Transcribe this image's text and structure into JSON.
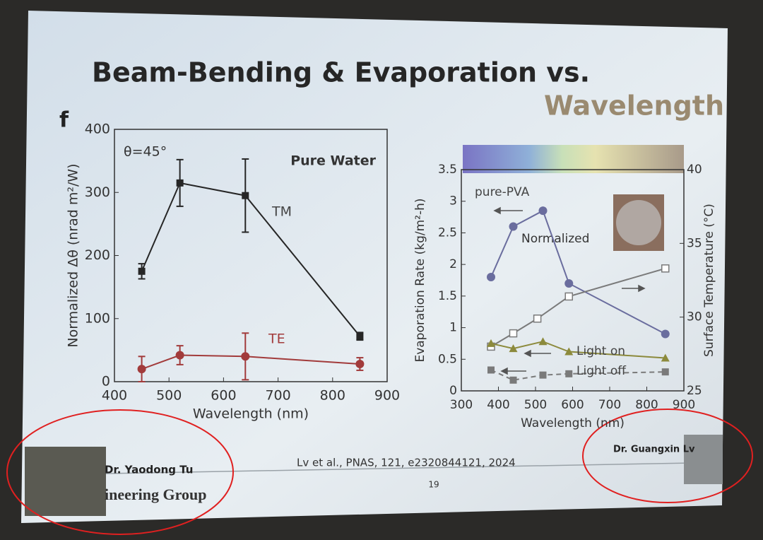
{
  "slide": {
    "title": "Beam-Bending & Evaporation vs.",
    "title_highlight": "Wavelength",
    "citation": "Lv et al., PNAS, 121, e2320844121, 2024",
    "page_number": "19",
    "presenter_left": "Dr. Yaodong Tu",
    "presenter_right": "Dr. Guangxin Lv",
    "footer_text": "ineering Group"
  },
  "chart_data": [
    {
      "type": "line",
      "panel_label": "f",
      "annotations": [
        "θ=45°",
        "Pure Water"
      ],
      "x_label": "Wavelength (nm)",
      "y_label": "Normalized Δθ (nrad m²/W)",
      "xlim": [
        400,
        900
      ],
      "xticks": [
        400,
        500,
        600,
        700,
        800,
        900
      ],
      "ylim": [
        0,
        400
      ],
      "yticks": [
        0,
        100,
        200,
        300,
        400
      ],
      "series": [
        {
          "name": "TM",
          "color": "#262626",
          "marker": "square",
          "x": [
            450,
            520,
            640,
            850
          ],
          "values": [
            175,
            315,
            295,
            72
          ],
          "errors": [
            12,
            37,
            58,
            6
          ]
        },
        {
          "name": "TE",
          "color": "#a23b3b",
          "marker": "circle",
          "x": [
            450,
            520,
            640,
            850
          ],
          "values": [
            20,
            42,
            40,
            28
          ],
          "errors": [
            20,
            15,
            37,
            10
          ]
        }
      ]
    },
    {
      "type": "line",
      "annotations": [
        "Normalized"
      ],
      "x_label": "Wavelength (nm)",
      "y_label": "Evaporation Rate (kg/m²-h)",
      "y2_label": "Surface Temperature (°C)",
      "xlim": [
        300,
        900
      ],
      "xticks": [
        300,
        400,
        500,
        600,
        700,
        800,
        900
      ],
      "ylim": [
        0,
        3.5
      ],
      "yticks": [
        0,
        0.5,
        1,
        1.5,
        2,
        2.5,
        3,
        3.5
      ],
      "y2lim": [
        25,
        40
      ],
      "y2ticks": [
        25,
        30,
        35,
        40
      ],
      "series": [
        {
          "name": "pure-PVA",
          "color": "#6a6d9e",
          "marker": "circle",
          "x": [
            380,
            440,
            520,
            590,
            850
          ],
          "values": [
            1.8,
            2.6,
            2.85,
            1.7,
            0.9
          ]
        },
        {
          "color": "#7a7a7a",
          "marker": "open-square",
          "axis": "y2",
          "x": [
            380,
            440,
            505,
            590,
            850
          ],
          "values": [
            28,
            28.9,
            29.9,
            31.4,
            33.3
          ]
        },
        {
          "name": "Light on",
          "color": "#8c8a3c",
          "marker": "triangle",
          "x": [
            380,
            440,
            520,
            590,
            850
          ],
          "values": [
            0.75,
            0.67,
            0.78,
            0.62,
            0.52
          ]
        },
        {
          "name": "Light off",
          "color": "#7a7a7a",
          "marker": "square",
          "dashed": true,
          "x": [
            380,
            440,
            520,
            590,
            850
          ],
          "values": [
            0.33,
            0.17,
            0.25,
            0.27,
            0.3
          ]
        }
      ]
    }
  ]
}
